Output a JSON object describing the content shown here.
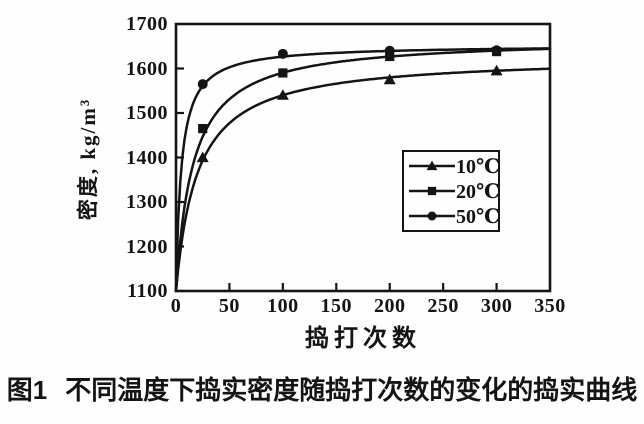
{
  "figure": {
    "caption_label": "图1",
    "caption_text": "不同温度下捣实密度随捣打次数的变化的捣实曲线"
  },
  "chart_data": {
    "type": "line",
    "title": "",
    "xlabel": "捣打次数",
    "ylabel": "密度, kg/m³",
    "xlim": [
      0,
      350
    ],
    "ylim": [
      1100,
      1700
    ],
    "x_ticks": [
      0,
      50,
      100,
      150,
      200,
      250,
      300,
      350
    ],
    "y_ticks": [
      1100,
      1200,
      1300,
      1400,
      1500,
      1600,
      1700
    ],
    "grid": false,
    "legend_position": "inside-right",
    "ink_color": "#141414",
    "background_color": "#fefefe",
    "series": [
      {
        "name": "10℃",
        "marker": "triangle",
        "color": "#141414",
        "points": [
          {
            "x": 25,
            "y": 1400
          },
          {
            "x": 100,
            "y": 1540
          },
          {
            "x": 200,
            "y": 1575
          },
          {
            "x": 300,
            "y": 1595
          }
        ],
        "curve_fit": {
          "model": "y = 1100 + a*x/(b+x)",
          "start": {
            "x": 0,
            "y": 1100
          },
          "a": 528,
          "b": 20,
          "y_at_350": 1600
        }
      },
      {
        "name": "20℃",
        "marker": "square",
        "color": "#141414",
        "points": [
          {
            "x": 25,
            "y": 1465
          },
          {
            "x": 100,
            "y": 1590
          },
          {
            "x": 200,
            "y": 1627
          },
          {
            "x": 300,
            "y": 1638
          }
        ],
        "curve_fit": {
          "model": "y = 1100 + a*x/(b+x)",
          "start": {
            "x": 0,
            "y": 1100
          },
          "a": 569,
          "b": 16,
          "y_at_350": 1644
        }
      },
      {
        "name": "50℃",
        "marker": "circle",
        "color": "#141414",
        "points": [
          {
            "x": 25,
            "y": 1565
          },
          {
            "x": 100,
            "y": 1633
          },
          {
            "x": 200,
            "y": 1640
          },
          {
            "x": 300,
            "y": 1641
          }
        ],
        "curve_fit": {
          "model": "y = 1100 + a*x/(b+x)",
          "start": {
            "x": 0,
            "y": 1100
          },
          "a": 553,
          "b": 5,
          "y_at_350": 1645
        }
      }
    ]
  }
}
